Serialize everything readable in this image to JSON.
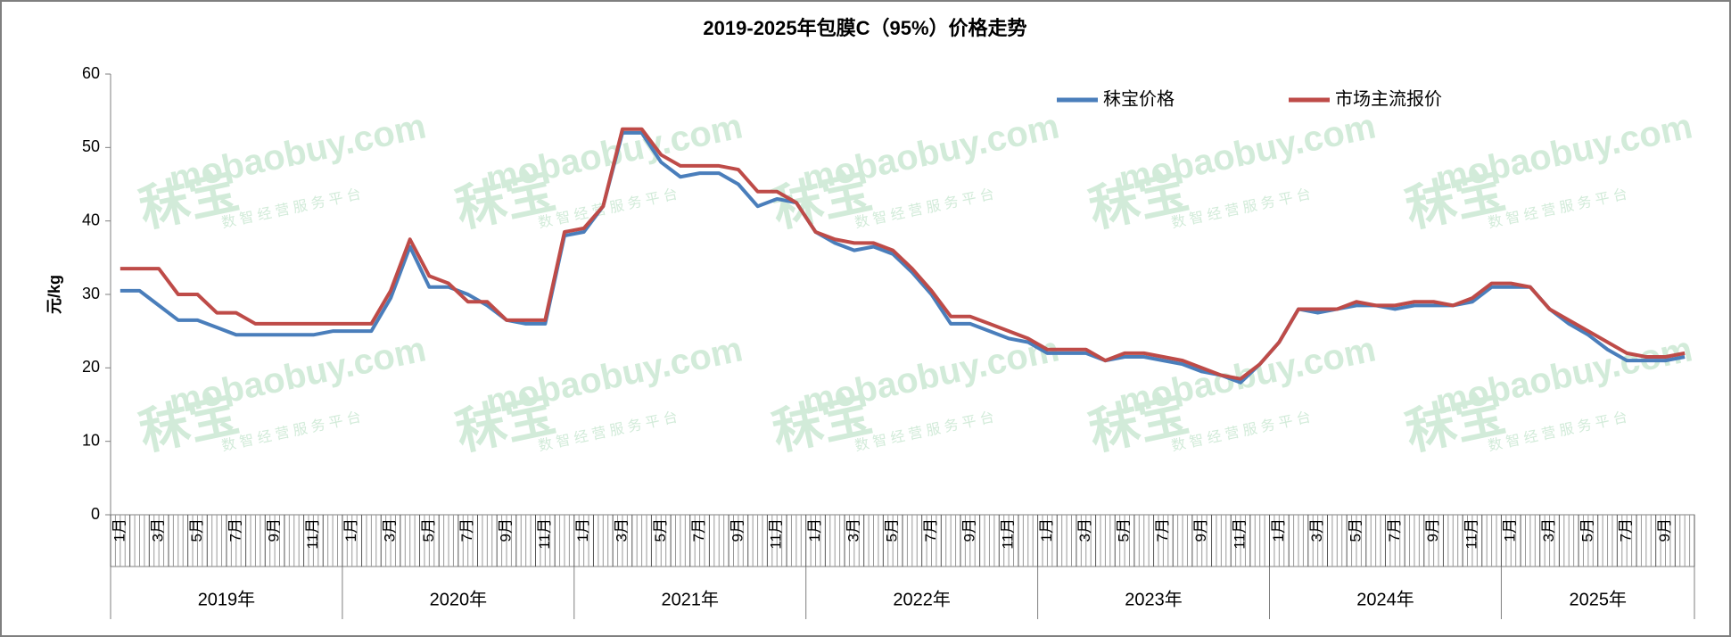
{
  "chart_data": {
    "type": "line",
    "title": "2019-2025年包膜C（95%）价格走势",
    "y_label": "元/kg",
    "ylim": [
      0,
      60
    ],
    "yticks": [
      0,
      10,
      20,
      30,
      40,
      50,
      60
    ],
    "legend": "top-right",
    "watermark": {
      "brand": "秣宝",
      "site": "mobaobuy.com",
      "slogan": "数 智 经 营 服 务 平 台"
    },
    "x_groups": [
      "2019年",
      "2020年",
      "2021年",
      "2022年",
      "2023年",
      "2024年",
      "2025年"
    ],
    "categories": [
      "1月",
      null,
      "3月",
      null,
      "5月",
      null,
      "7月",
      null,
      "9月",
      null,
      "11月",
      null,
      "1月",
      null,
      "3月",
      null,
      "5月",
      null,
      "7月",
      null,
      "9月",
      null,
      "11月",
      null,
      "1月",
      null,
      "3月",
      null,
      "5月",
      null,
      "7月",
      null,
      "9月",
      null,
      "11月",
      null,
      "1月",
      null,
      "3月",
      null,
      "5月",
      null,
      "7月",
      null,
      "9月",
      null,
      "11月",
      null,
      "1月",
      null,
      "3月",
      null,
      "5月",
      null,
      "7月",
      null,
      "9月",
      null,
      "11月",
      null,
      "1月",
      null,
      "3月",
      null,
      "5月",
      null,
      "7月",
      null,
      "9月",
      null,
      "11月",
      null,
      "1月",
      null,
      "3月",
      null,
      "5月",
      null,
      "7月",
      null,
      "9月",
      null
    ],
    "series": [
      {
        "name": "秣宝价格",
        "color": "#4a7ebb",
        "values": [
          30.5,
          30.5,
          28.5,
          26.5,
          26.5,
          25.5,
          24.5,
          24.5,
          24.5,
          24.5,
          24.5,
          25,
          25,
          25,
          29.5,
          36.5,
          31,
          31,
          30,
          28.5,
          26.5,
          26,
          26,
          38,
          38.5,
          42,
          52,
          52,
          48,
          46,
          46.5,
          46.5,
          45,
          42,
          43,
          42.5,
          38.5,
          37,
          36,
          36.5,
          35.5,
          33,
          30,
          26,
          26,
          25,
          24,
          23.5,
          22,
          22,
          22,
          21,
          21.5,
          21.5,
          21,
          20.5,
          19.5,
          19,
          18,
          20.5,
          23.5,
          28,
          27.5,
          28,
          28.5,
          28.5,
          28,
          28.5,
          28.5,
          28.5,
          29,
          31,
          31,
          31,
          28,
          26,
          24.5,
          22.5,
          21,
          21,
          21,
          21.5
        ]
      },
      {
        "name": "市场主流报价",
        "color": "#be4b48",
        "values": [
          33.5,
          33.5,
          33.5,
          30,
          30,
          27.5,
          27.5,
          26,
          26,
          26,
          26,
          26,
          26,
          26,
          30.5,
          37.5,
          32.5,
          31.5,
          29,
          29,
          26.5,
          26.5,
          26.5,
          38.5,
          39,
          42,
          52.5,
          52.5,
          49,
          47.5,
          47.5,
          47.5,
          47,
          44,
          44,
          42.5,
          38.5,
          37.5,
          37,
          37,
          36,
          33.5,
          30.5,
          27,
          27,
          26,
          25,
          24,
          22.5,
          22.5,
          22.5,
          21,
          22,
          22,
          21.5,
          21,
          20,
          19,
          18.5,
          20.5,
          23.5,
          28,
          28,
          28,
          29,
          28.5,
          28.5,
          29,
          29,
          28.5,
          29.5,
          31.5,
          31.5,
          31,
          28,
          26.5,
          25,
          23.5,
          22,
          21.5,
          21.5,
          22
        ]
      }
    ]
  }
}
